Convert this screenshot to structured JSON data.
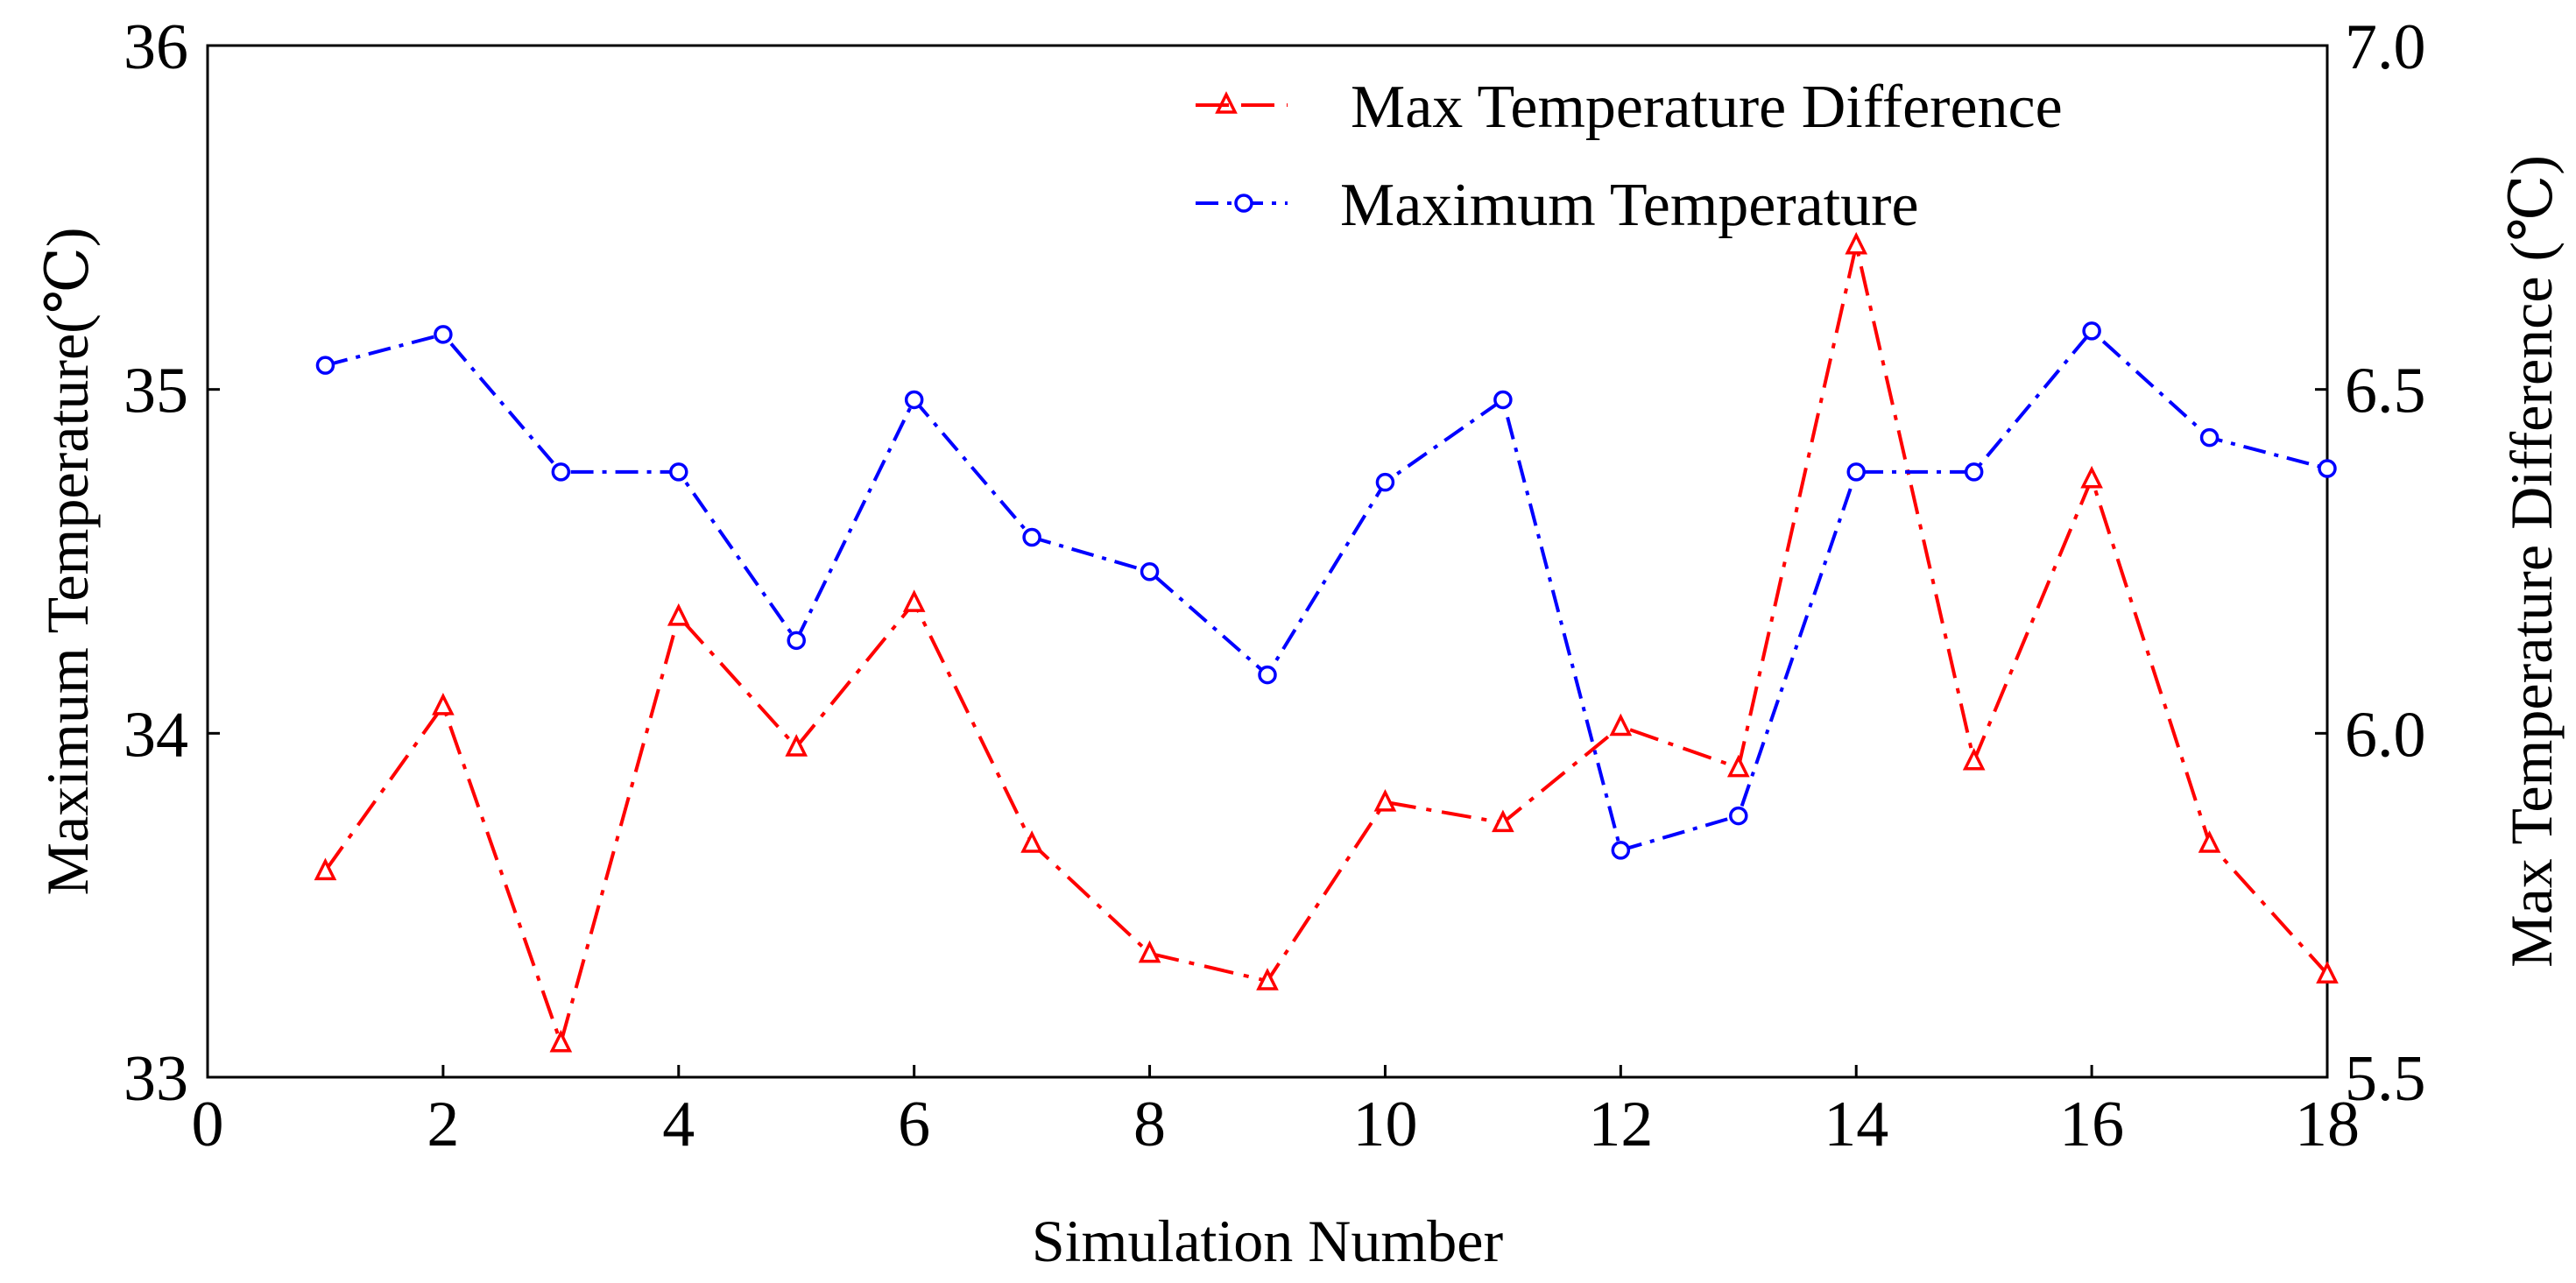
{
  "chart_data": {
    "type": "line",
    "title": "",
    "xlabel": "Simulation Number",
    "ylabel_left": "Maximum Temperature(℃)",
    "ylabel_right": "Max Temperature Difference (℃)",
    "xlim": [
      0,
      18
    ],
    "ylim_left": [
      33,
      36
    ],
    "ylim_right": [
      5.5,
      7.0
    ],
    "x_ticks": [
      "0",
      "2",
      "4",
      "6",
      "8",
      "10",
      "12",
      "14",
      "16",
      "18"
    ],
    "y_left_ticks": [
      "33",
      "34",
      "35",
      "36"
    ],
    "y_right_ticks": [
      "5.5",
      "6.0",
      "6.5",
      "7.0"
    ],
    "grid": false,
    "legend_position": "top-right",
    "series": [
      {
        "name": "Max Temperature Difference",
        "axis": "right",
        "color": "#ff0000",
        "marker": "triangle",
        "x": [
          1,
          2,
          3,
          4,
          5,
          6,
          7,
          8,
          9,
          10,
          11,
          12,
          13,
          14,
          15,
          16,
          17,
          18
        ],
        "values": [
          5.8,
          6.04,
          5.55,
          6.17,
          5.98,
          6.19,
          5.84,
          5.68,
          5.64,
          5.9,
          5.87,
          6.01,
          5.95,
          6.71,
          5.96,
          6.37,
          5.84,
          5.65
        ]
      },
      {
        "name": "Maximum Temperature",
        "axis": "left",
        "color": "#0000ff",
        "marker": "circle",
        "x": [
          1,
          2,
          3,
          4,
          5,
          6,
          7,
          8,
          9,
          10,
          11,
          12,
          13,
          14,
          15,
          16,
          17,
          18
        ],
        "values": [
          35.07,
          35.16,
          34.76,
          34.76,
          34.27,
          34.97,
          34.57,
          34.47,
          34.17,
          34.73,
          34.97,
          33.66,
          33.76,
          34.76,
          34.76,
          35.17,
          34.86,
          34.77
        ]
      }
    ]
  }
}
